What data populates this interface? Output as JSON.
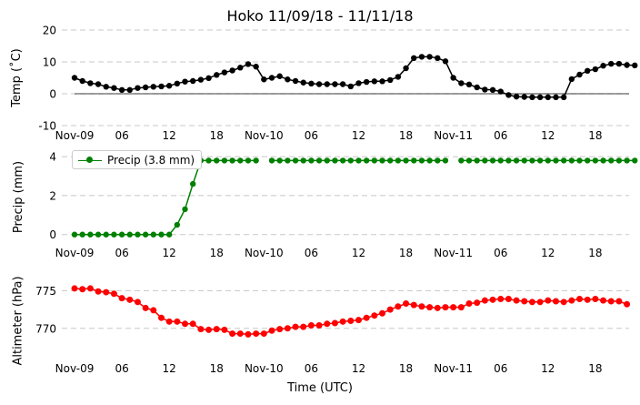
{
  "title": "Hoko 11/09/18 - 11/11/18",
  "xlabel": "Time (UTC)",
  "x_tick_labels": [
    "Nov-09",
    "06",
    "12",
    "18",
    "Nov-10",
    "06",
    "12",
    "18",
    "Nov-11",
    "06",
    "12",
    "18"
  ],
  "x_tick_hours": [
    0,
    6,
    12,
    18,
    24,
    30,
    36,
    42,
    48,
    54,
    60,
    66
  ],
  "chart_data": [
    {
      "type": "line",
      "ylabel": "Temp (˚C)",
      "ylim": [
        -10,
        20
      ],
      "yticks": [
        -10,
        0,
        10,
        20
      ],
      "grid": true,
      "zero_line": true,
      "color": "#000000",
      "series": [
        {
          "name": "Temp",
          "start_hour": 0,
          "values": [
            5,
            4,
            3.3,
            3,
            2.2,
            1.8,
            1.2,
            1.2,
            1.8,
            2,
            2.2,
            2.3,
            2.5,
            3.2,
            3.8,
            4,
            4.4,
            4.9,
            5.9,
            6.7,
            7.3,
            8.2,
            9.3,
            8.5,
            4.5,
            5,
            5.5,
            4.5,
            4,
            3.5,
            3.2,
            3,
            3,
            3,
            3,
            2.3,
            3.3,
            3.7,
            3.9,
            3.9,
            4.3,
            5.3,
            8,
            11.2,
            11.6,
            11.6,
            11.2,
            10.2,
            5,
            3.3,
            2.9,
            2,
            1.3,
            1.2,
            0.7,
            -0.4,
            -0.9,
            -1,
            -1.1,
            -1.1,
            -1.1,
            -1.1,
            -1.1,
            4.6,
            6,
            7.2,
            7.7,
            8.8,
            9.4,
            9.4,
            9,
            8.9
          ]
        }
      ]
    },
    {
      "type": "line",
      "ylabel": "Precip (mm)",
      "ylim": [
        -0.2,
        4.1
      ],
      "yticks": [
        0,
        2,
        4
      ],
      "grid": true,
      "color": "#008000",
      "legend": "Precip (3.8 mm)",
      "legend_loc": "upper left",
      "series": [
        {
          "name": "Precip (3.8 mm)",
          "start_hour": 0,
          "values": [
            0,
            0,
            0,
            0,
            0,
            0,
            0,
            0,
            0,
            0,
            0,
            0,
            0,
            0.5,
            1.3,
            2.6,
            3.8,
            3.8,
            3.8,
            3.8,
            3.8,
            3.8,
            3.8,
            3.8,
            null,
            3.8,
            3.8,
            3.8,
            3.8,
            3.8,
            3.8,
            3.8,
            3.8,
            3.8,
            3.8,
            3.8,
            3.8,
            3.8,
            3.8,
            3.8,
            3.8,
            3.8,
            3.8,
            3.8,
            3.8,
            3.8,
            3.8,
            3.8,
            null,
            3.8,
            3.8,
            3.8,
            3.8,
            3.8,
            3.8,
            3.8,
            3.8,
            3.8,
            3.8,
            3.8,
            3.8,
            3.8,
            3.8,
            3.8,
            3.8,
            3.8,
            3.8,
            3.8,
            3.8,
            3.8,
            3.8,
            3.8
          ]
        }
      ]
    },
    {
      "type": "line",
      "ylabel": "Altimeter (hPa)",
      "ylim": [
        765.5,
        776.5
      ],
      "yticks": [
        770,
        775
      ],
      "grid": true,
      "color": "#ff0000",
      "series": [
        {
          "name": "Altimeter",
          "start_hour": 0,
          "values": [
            775.3,
            775.2,
            775.3,
            774.9,
            774.8,
            774.6,
            774.0,
            773.8,
            773.5,
            772.7,
            772.4,
            771.4,
            770.9,
            770.9,
            770.6,
            770.6,
            769.9,
            769.8,
            769.9,
            769.8,
            769.3,
            769.3,
            769.2,
            769.3,
            769.3,
            769.7,
            769.9,
            770.0,
            770.2,
            770.2,
            770.4,
            770.4,
            770.6,
            770.7,
            770.9,
            771.0,
            771.1,
            771.4,
            771.7,
            772.0,
            772.5,
            772.9,
            773.3,
            773.1,
            772.9,
            772.8,
            772.7,
            772.8,
            772.8,
            772.8,
            773.3,
            773.4,
            773.7,
            773.8,
            773.9,
            773.9,
            773.7,
            773.6,
            773.5,
            773.5,
            773.7,
            773.6,
            773.5,
            773.7,
            773.9,
            773.8,
            773.9,
            773.7,
            773.6,
            773.6,
            773.2
          ]
        }
      ]
    }
  ]
}
